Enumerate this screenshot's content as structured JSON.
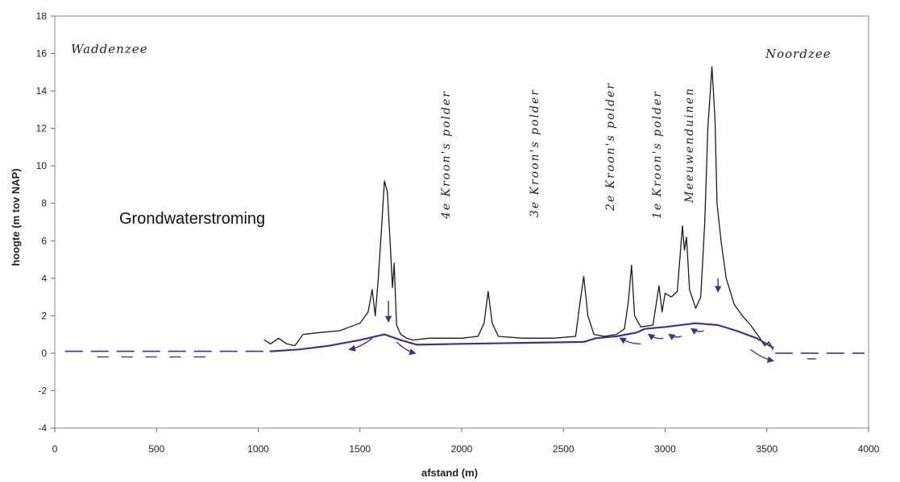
{
  "chart_data": {
    "type": "line",
    "title": "",
    "xlabel": "afstand (m)",
    "ylabel": "hoogte (m tov NAP)",
    "xlim": [
      0,
      4000
    ],
    "ylim": [
      -4,
      18
    ],
    "x_ticks": [
      "0",
      "500",
      "1000",
      "1500",
      "2000",
      "2500",
      "3000",
      "3500",
      "4000"
    ],
    "y_ticks": [
      "-4",
      "-2",
      "0",
      "2",
      "4",
      "6",
      "8",
      "10",
      "12",
      "14",
      "16",
      "18"
    ],
    "grid": false,
    "annotations": {
      "main_label": "Grondwaterstroming",
      "waddenzee": "Waddenzee",
      "noordzee": "Noordzee",
      "polder4": "4e Kroon's polder",
      "polder3": "3e Kroon's polder",
      "polder2": "2e Kroon's polder",
      "polder1": "1e Kroon's polder",
      "meeuwenduinen": "Meeuwenduinen"
    },
    "series": [
      {
        "role": "terrain",
        "color": "#1a1a1a",
        "points": [
          [
            1030,
            0.7
          ],
          [
            1060,
            0.5
          ],
          [
            1100,
            0.8
          ],
          [
            1140,
            0.5
          ],
          [
            1180,
            0.4
          ],
          [
            1200,
            0.7
          ],
          [
            1220,
            1.0
          ],
          [
            1300,
            1.1
          ],
          [
            1400,
            1.2
          ],
          [
            1450,
            1.4
          ],
          [
            1500,
            1.6
          ],
          [
            1540,
            2.2
          ],
          [
            1560,
            3.4
          ],
          [
            1575,
            2.0
          ],
          [
            1590,
            4.0
          ],
          [
            1605,
            6.5
          ],
          [
            1620,
            9.2
          ],
          [
            1635,
            8.6
          ],
          [
            1648,
            6.0
          ],
          [
            1660,
            3.5
          ],
          [
            1668,
            4.8
          ],
          [
            1680,
            1.5
          ],
          [
            1700,
            1.0
          ],
          [
            1730,
            0.8
          ],
          [
            1760,
            0.7
          ],
          [
            1840,
            0.8
          ],
          [
            1900,
            0.8
          ],
          [
            2000,
            0.8
          ],
          [
            2080,
            0.9
          ],
          [
            2110,
            1.6
          ],
          [
            2130,
            3.3
          ],
          [
            2150,
            1.6
          ],
          [
            2180,
            0.9
          ],
          [
            2300,
            0.8
          ],
          [
            2450,
            0.8
          ],
          [
            2560,
            0.9
          ],
          [
            2580,
            2.6
          ],
          [
            2600,
            4.1
          ],
          [
            2620,
            2.0
          ],
          [
            2650,
            1.0
          ],
          [
            2700,
            0.9
          ],
          [
            2760,
            1.0
          ],
          [
            2800,
            1.3
          ],
          [
            2820,
            2.8
          ],
          [
            2835,
            4.7
          ],
          [
            2850,
            2.0
          ],
          [
            2880,
            1.4
          ],
          [
            2940,
            1.5
          ],
          [
            2970,
            3.6
          ],
          [
            2985,
            2.2
          ],
          [
            3000,
            3.2
          ],
          [
            3030,
            3.0
          ],
          [
            3060,
            3.3
          ],
          [
            3085,
            6.8
          ],
          [
            3095,
            5.5
          ],
          [
            3105,
            6.2
          ],
          [
            3120,
            3.4
          ],
          [
            3150,
            2.4
          ],
          [
            3175,
            3.0
          ],
          [
            3195,
            7.0
          ],
          [
            3210,
            12.0
          ],
          [
            3230,
            15.3
          ],
          [
            3245,
            12.5
          ],
          [
            3255,
            8.0
          ],
          [
            3275,
            6.0
          ],
          [
            3300,
            4.0
          ],
          [
            3340,
            2.6
          ],
          [
            3380,
            2.0
          ],
          [
            3420,
            1.5
          ],
          [
            3460,
            0.9
          ],
          [
            3490,
            0.4
          ],
          [
            3510,
            0.6
          ],
          [
            3530,
            0.2
          ]
        ]
      },
      {
        "role": "groundwater-level",
        "color": "#3a3290",
        "points": [
          [
            1060,
            0.1
          ],
          [
            1200,
            0.2
          ],
          [
            1350,
            0.4
          ],
          [
            1500,
            0.7
          ],
          [
            1620,
            1.0
          ],
          [
            1700,
            0.7
          ],
          [
            1780,
            0.45
          ],
          [
            2000,
            0.5
          ],
          [
            2300,
            0.55
          ],
          [
            2600,
            0.6
          ],
          [
            2660,
            0.8
          ],
          [
            2760,
            0.9
          ],
          [
            2860,
            1.1
          ],
          [
            2900,
            1.3
          ],
          [
            3000,
            1.4
          ],
          [
            3150,
            1.6
          ],
          [
            3260,
            1.5
          ],
          [
            3350,
            1.2
          ],
          [
            3450,
            0.8
          ],
          [
            3530,
            0.3
          ]
        ]
      },
      {
        "role": "sea-level",
        "color": "#3a3290",
        "dashed": true,
        "points": [
          [
            50,
            0.1
          ],
          [
            1040,
            0.1
          ],
          [
            3540,
            0.0
          ],
          [
            3980,
            0.0
          ]
        ]
      }
    ]
  }
}
